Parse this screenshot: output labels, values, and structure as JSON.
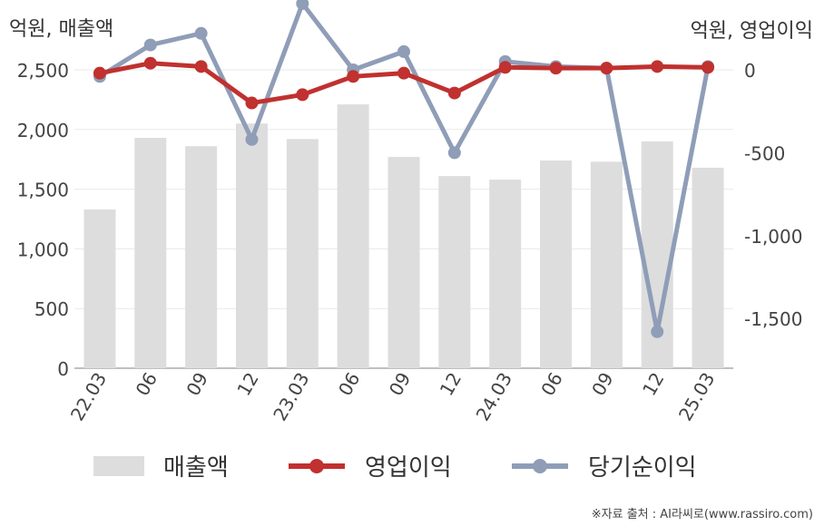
{
  "chart_data": {
    "type": "bar+line",
    "unit_left": "억원, 매출액",
    "unit_right": "억원, 영업이익",
    "categories": [
      "22.03",
      "06",
      "09",
      "12",
      "23.03",
      "06",
      "09",
      "12",
      "24.03",
      "06",
      "09",
      "12",
      "25.03"
    ],
    "bar_series": {
      "name": "매출액",
      "axis": "left",
      "color": "#dddddd",
      "values": [
        1330,
        1930,
        1860,
        2050,
        1920,
        2210,
        1770,
        1610,
        1580,
        1740,
        1730,
        1900,
        1680
      ]
    },
    "line_series": [
      {
        "name": "영업이익",
        "axis": "right",
        "color": "#c0312f",
        "values": [
          -20,
          40,
          20,
          -200,
          -150,
          -40,
          -20,
          -140,
          15,
          10,
          10,
          20,
          15
        ]
      },
      {
        "name": "당기순이익",
        "axis": "right",
        "color": "#8f9db7",
        "values": [
          -40,
          150,
          220,
          -420,
          400,
          0,
          110,
          -500,
          50,
          20,
          10,
          -1580,
          20
        ]
      }
    ],
    "y_left": {
      "min": 0,
      "max": 2500,
      "ticks": [
        0,
        500,
        1000,
        1500,
        2000,
        2500
      ],
      "tick_labels": [
        "0",
        "500",
        "1,000",
        "1,500",
        "2,000",
        "2,500"
      ]
    },
    "y_right": {
      "min": -1800,
      "max": 0,
      "ticks": [
        0,
        -500,
        -1000,
        -1500
      ],
      "tick_labels": [
        "0",
        "-500",
        "-1,000",
        "-1,500"
      ]
    },
    "grid": true,
    "legend_position": "bottom"
  },
  "source": "※자료 출처 : AI라씨로(www.rassiro.com)"
}
